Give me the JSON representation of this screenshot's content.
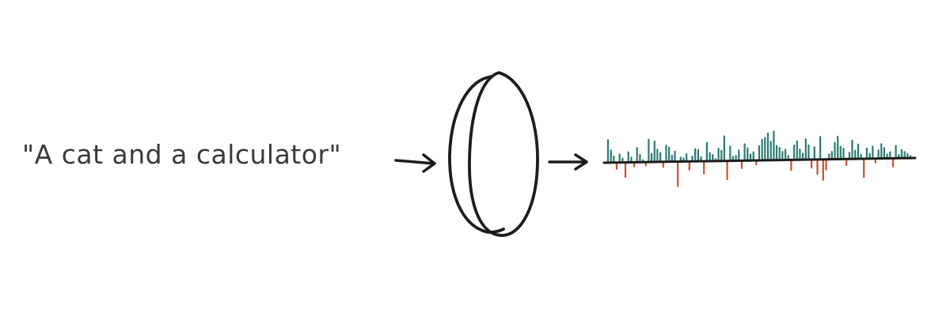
{
  "prompt": {
    "text": "\"A cat and a calculator\""
  },
  "colors": {
    "ink": "#1c1c1c",
    "text": "#3a3a3a",
    "positive": "#2a7a72",
    "negative": "#c8502e"
  },
  "icons": {
    "model": "lens-icon",
    "arrow": "arrow-right-icon",
    "embedding": "embedding-spikes-icon"
  },
  "embedding": {
    "values": [
      0.55,
      0.3,
      0.15,
      -0.15,
      0.2,
      0.1,
      -0.35,
      0.25,
      0.12,
      -0.1,
      0.35,
      0.18,
      0.05,
      -0.08,
      0.55,
      0.2,
      0.5,
      0.3,
      0.22,
      -0.12,
      0.4,
      0.35,
      0.15,
      0.25,
      -0.6,
      0.1,
      0.08,
      0.18,
      -0.2,
      0.12,
      0.3,
      0.28,
      0.1,
      -0.3,
      0.45,
      0.2,
      0.15,
      0.05,
      0.3,
      0.25,
      0.6,
      -0.45,
      0.35,
      0.1,
      0.12,
      0.25,
      -0.18,
      0.4,
      0.3,
      0.15,
      0.2,
      -0.1,
      0.35,
      0.5,
      0.55,
      0.65,
      0.45,
      0.7,
      0.35,
      0.3,
      0.2,
      0.25,
      0.1,
      -0.25,
      0.35,
      0.45,
      0.25,
      0.15,
      0.5,
      0.35,
      -0.2,
      0.3,
      -0.35,
      0.55,
      -0.5,
      -0.25,
      0.12,
      0.18,
      0.4,
      0.55,
      0.3,
      0.25,
      -0.15,
      0.15,
      0.45,
      0.2,
      0.35,
      0.1,
      -0.45,
      0.25,
      0.12,
      0.3,
      -0.1,
      0.2,
      0.35,
      0.25,
      0.1,
      0.15,
      -0.2,
      0.3,
      0.08,
      0.2,
      0.15,
      0.1,
      0.05
    ]
  }
}
